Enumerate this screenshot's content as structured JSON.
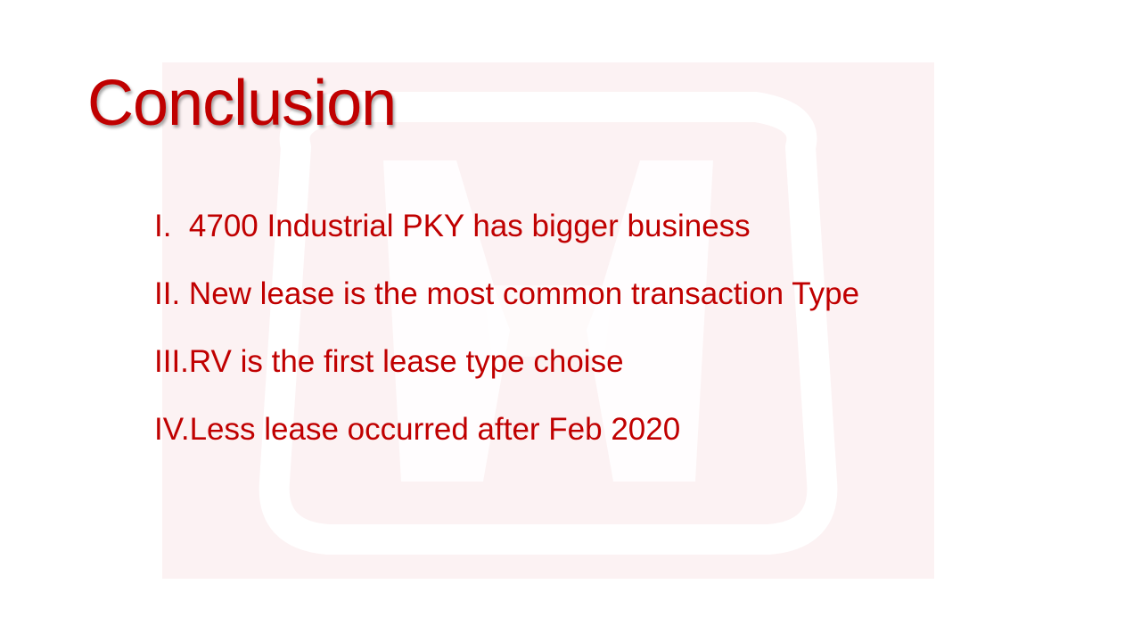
{
  "slide": {
    "title": "Conclusion",
    "items": [
      {
        "numeral": "I.",
        "text": "4700 Industrial PKY has bigger business",
        "spaced": true
      },
      {
        "numeral": "II.",
        "text": "New lease is the most common transaction Type",
        "spaced": true
      },
      {
        "numeral": "III.",
        "text": "RV is the first lease type choise",
        "spaced": false
      },
      {
        "numeral": "IV.",
        "text": "Less lease occurred after Feb 2020",
        "spaced": false
      }
    ],
    "colors": {
      "text": "#c00000",
      "watermark_bg": "#fcf2f3",
      "watermark_logo": "#ffffff"
    },
    "watermark_icon": "honda-logo-icon"
  }
}
